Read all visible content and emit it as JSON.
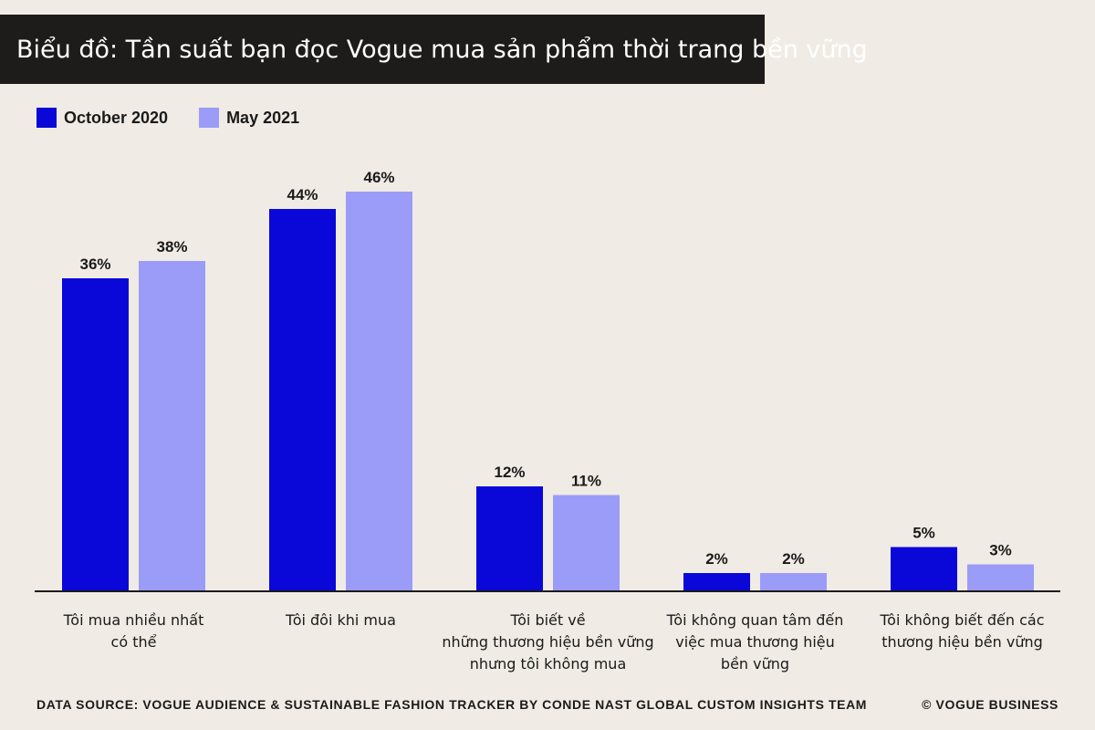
{
  "title": "Biểu đồ: Tần suất bạn đọc Vogue mua sản phẩm thời trang bền vững",
  "colors": {
    "background": "#f0ebe4",
    "title_bar": "#1e1c1b",
    "series1": "#0a07d9",
    "series2": "#9b9bf8",
    "axis": "#1a1a1a"
  },
  "chart_data": {
    "type": "bar",
    "title": "Biểu đồ: Tần suất bạn đọc Vogue mua sản phẩm thời trang bền vững",
    "categories": [
      [
        "Tôi mua nhiều nhất",
        "có thể"
      ],
      [
        "Tôi đôi khi mua"
      ],
      [
        "Tôi biết về",
        "những thương hiệu bền vững",
        "nhưng tôi không mua"
      ],
      [
        "Tôi không quan tâm đến",
        "việc mua thương hiệu",
        "bền vững"
      ],
      [
        "Tôi không biết đến các",
        "thương hiệu bền vững"
      ]
    ],
    "series": [
      {
        "name": "October 2020",
        "values": [
          36,
          44,
          12,
          2,
          5
        ],
        "labels": [
          "36%",
          "44%",
          "12%",
          "2%",
          "5%"
        ]
      },
      {
        "name": "May 2021",
        "values": [
          38,
          46,
          11,
          2,
          3
        ],
        "labels": [
          "38%",
          "46%",
          "11%",
          "2%",
          "3%"
        ]
      }
    ],
    "ylim": [
      0,
      50
    ],
    "grid": false,
    "legend_position": "top-left"
  },
  "footer": {
    "source": "DATA SOURCE: VOGUE AUDIENCE & SUSTAINABLE FASHION TRACKER BY CONDE NAST GLOBAL CUSTOM INSIGHTS TEAM",
    "copyright": "© VOGUE BUSINESS"
  }
}
